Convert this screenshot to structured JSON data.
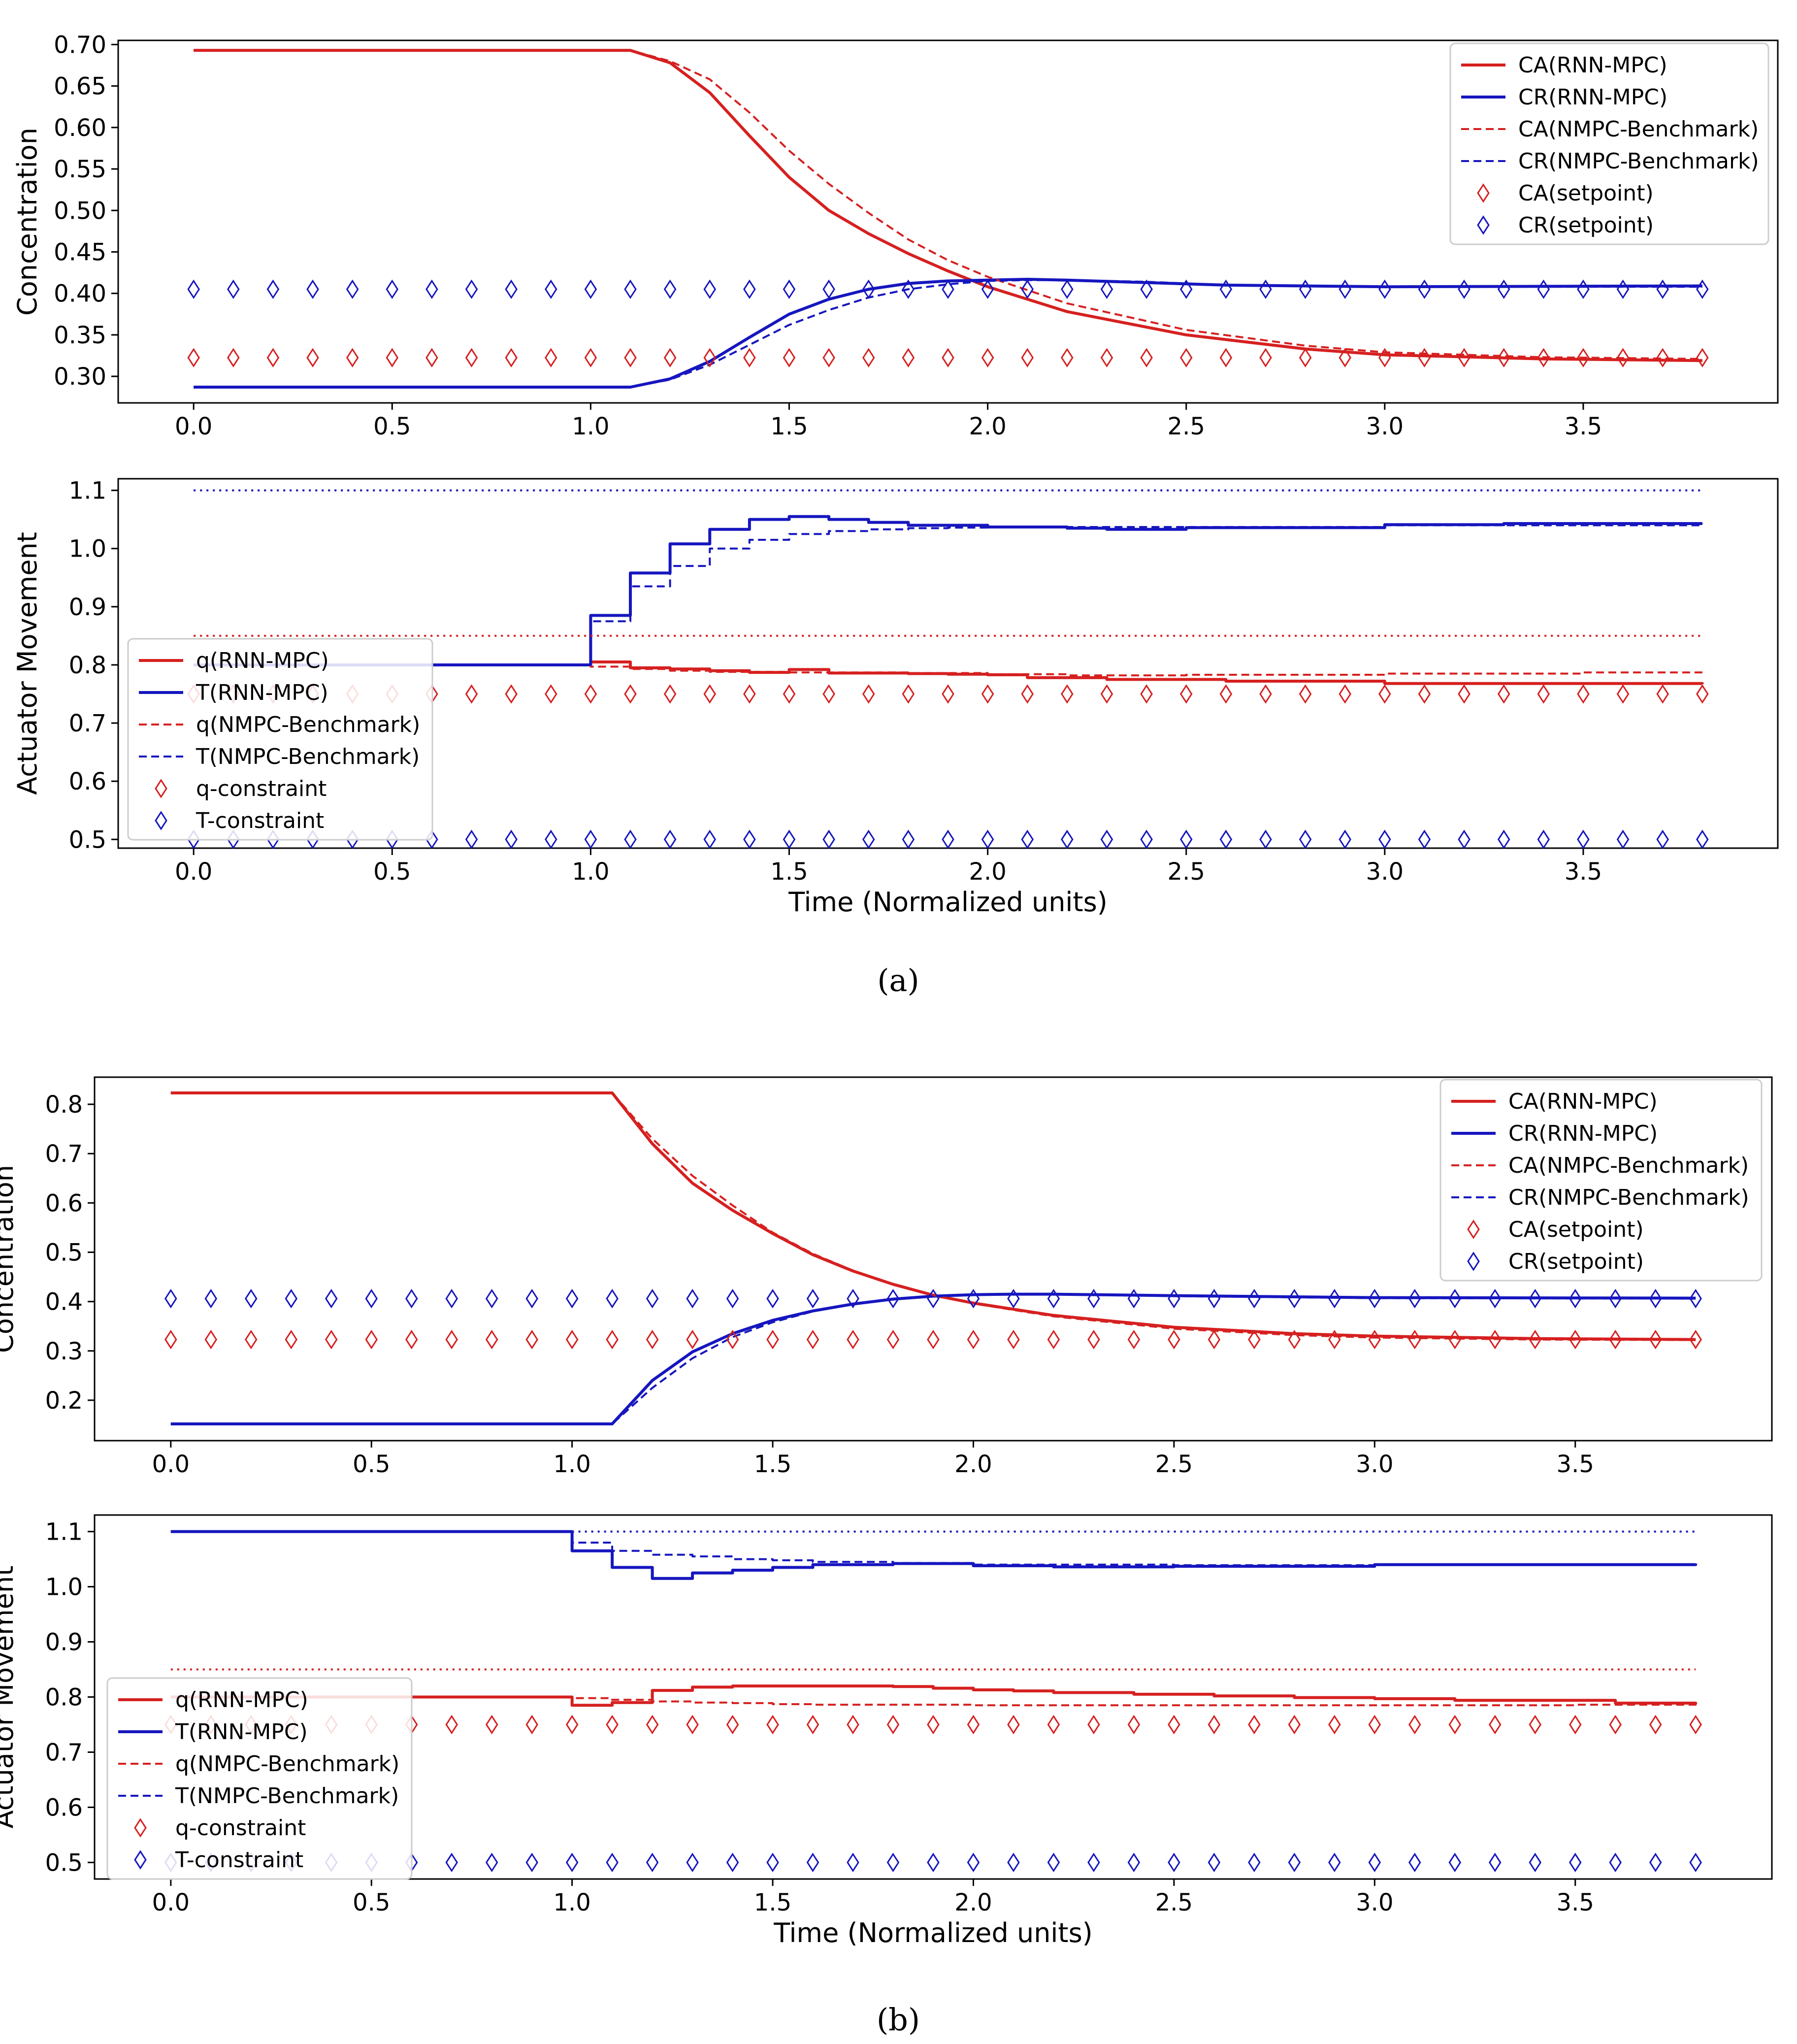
{
  "figure_captions": [
    "(a)",
    "(b)"
  ],
  "colors": {
    "red": "#d62020",
    "blue": "#1616bf"
  },
  "chart_data": [
    {
      "id": "a_conc",
      "type": "line",
      "title": "",
      "xlabel": "",
      "ylabel": "Concentration",
      "xlim": [
        -0.19,
        3.99
      ],
      "ylim": [
        0.268,
        0.705
      ],
      "xticks": [
        "0.0",
        "0.5",
        "1.0",
        "1.5",
        "2.0",
        "2.5",
        "3.0",
        "3.5"
      ],
      "yticks": [
        "0.30",
        "0.35",
        "0.40",
        "0.45",
        "0.50",
        "0.55",
        "0.60",
        "0.65",
        "0.70"
      ],
      "legend": {
        "placement": "top-right",
        "labels": [
          "CA(RNN-MPC)",
          "CR(RNN-MPC)",
          "CA(NMPC-Benchmark)",
          "CR(NMPC-Benchmark)",
          "CA(setpoint)",
          "CR(setpoint)"
        ]
      },
      "series": [
        {
          "name": "CA(RNN-MPC)",
          "color": "red",
          "style": "solid",
          "x": [
            0,
            1.1,
            1.2,
            1.3,
            1.4,
            1.5,
            1.6,
            1.7,
            1.8,
            1.9,
            2.0,
            2.2,
            2.5,
            2.8,
            3.0,
            3.4,
            3.8
          ],
          "y": [
            0.693,
            0.693,
            0.678,
            0.642,
            0.59,
            0.54,
            0.5,
            0.472,
            0.448,
            0.427,
            0.408,
            0.378,
            0.35,
            0.333,
            0.326,
            0.321,
            0.319
          ]
        },
        {
          "name": "CR(RNN-MPC)",
          "color": "blue",
          "style": "solid",
          "x": [
            0,
            1.1,
            1.2,
            1.3,
            1.4,
            1.5,
            1.6,
            1.7,
            1.8,
            1.9,
            2.0,
            2.1,
            2.2,
            2.4,
            2.6,
            3.0,
            3.8
          ],
          "y": [
            0.287,
            0.287,
            0.297,
            0.318,
            0.347,
            0.375,
            0.393,
            0.405,
            0.412,
            0.415,
            0.416,
            0.417,
            0.416,
            0.413,
            0.41,
            0.408,
            0.409
          ]
        },
        {
          "name": "CA(NMPC-Benchmark)",
          "color": "red",
          "style": "dashed",
          "x": [
            0,
            1.1,
            1.2,
            1.3,
            1.4,
            1.5,
            1.6,
            1.7,
            1.8,
            1.9,
            2.0,
            2.2,
            2.5,
            2.8,
            3.0,
            3.4,
            3.8
          ],
          "y": [
            0.693,
            0.693,
            0.68,
            0.658,
            0.618,
            0.572,
            0.532,
            0.497,
            0.465,
            0.44,
            0.42,
            0.388,
            0.356,
            0.337,
            0.329,
            0.323,
            0.321
          ]
        },
        {
          "name": "CR(NMPC-Benchmark)",
          "color": "blue",
          "style": "dashed",
          "x": [
            0,
            1.1,
            1.2,
            1.3,
            1.4,
            1.5,
            1.6,
            1.7,
            1.8,
            1.9,
            2.0,
            2.1,
            2.2,
            2.4,
            2.6,
            3.0,
            3.8
          ],
          "y": [
            0.287,
            0.287,
            0.296,
            0.314,
            0.338,
            0.362,
            0.38,
            0.395,
            0.405,
            0.411,
            0.415,
            0.416,
            0.416,
            0.414,
            0.41,
            0.408,
            0.408
          ]
        },
        {
          "name": "CA(setpoint)",
          "color": "red",
          "style": "marker",
          "constant": 0.3225,
          "x_start": 0,
          "x_end": 3.8,
          "x_step": 0.1
        },
        {
          "name": "CR(setpoint)",
          "color": "blue",
          "style": "marker",
          "constant": 0.405,
          "x_start": 0,
          "x_end": 3.8,
          "x_step": 0.1
        }
      ]
    },
    {
      "id": "a_act",
      "type": "line",
      "title": "",
      "xlabel": "Time (Normalized units)",
      "ylabel": "Actuator Movement",
      "xlim": [
        -0.19,
        3.99
      ],
      "ylim": [
        0.485,
        1.12
      ],
      "xticks": [
        "0.0",
        "0.5",
        "1.0",
        "1.5",
        "2.0",
        "2.5",
        "3.0",
        "3.5"
      ],
      "yticks": [
        "0.5",
        "0.6",
        "0.7",
        "0.8",
        "0.9",
        "1.0",
        "1.1"
      ],
      "legend": {
        "placement": "lower-left",
        "labels": [
          "q(RNN-MPC)",
          "T(RNN-MPC)",
          "q(NMPC-Benchmark)",
          "T(NMPC-Benchmark)",
          "q-constraint",
          "T-constraint"
        ]
      },
      "series": [
        {
          "name": "q(RNN-MPC)",
          "color": "red",
          "style": "step",
          "x": [
            0,
            1.0,
            1.1,
            1.2,
            1.3,
            1.4,
            1.5,
            1.6,
            1.8,
            1.9,
            2.0,
            2.1,
            2.3,
            2.6,
            3.0,
            3.8
          ],
          "y": [
            0.8,
            0.805,
            0.795,
            0.793,
            0.79,
            0.787,
            0.792,
            0.786,
            0.785,
            0.784,
            0.783,
            0.778,
            0.775,
            0.772,
            0.768,
            0.767
          ]
        },
        {
          "name": "T(RNN-MPC)",
          "color": "blue",
          "style": "step",
          "x": [
            0,
            1.0,
            1.1,
            1.2,
            1.3,
            1.4,
            1.5,
            1.6,
            1.7,
            1.8,
            2.0,
            2.2,
            2.3,
            2.5,
            3.0,
            3.3,
            3.8
          ],
          "y": [
            0.8,
            0.885,
            0.958,
            1.008,
            1.033,
            1.05,
            1.055,
            1.05,
            1.045,
            1.04,
            1.037,
            1.035,
            1.033,
            1.036,
            1.041,
            1.043,
            1.043
          ]
        },
        {
          "name": "q(NMPC-Benchmark)",
          "color": "red",
          "style": "step-dashed",
          "x": [
            0,
            1.0,
            1.1,
            1.2,
            1.3,
            1.5,
            1.6,
            1.8,
            2.0,
            2.2,
            2.5,
            3.0,
            3.5,
            3.8
          ],
          "y": [
            0.8,
            0.797,
            0.793,
            0.79,
            0.788,
            0.787,
            0.787,
            0.786,
            0.784,
            0.782,
            0.783,
            0.785,
            0.787,
            0.787
          ]
        },
        {
          "name": "T(NMPC-Benchmark)",
          "color": "blue",
          "style": "step-dashed",
          "x": [
            0,
            1.0,
            1.1,
            1.2,
            1.3,
            1.4,
            1.5,
            1.6,
            1.7,
            1.8,
            1.9,
            2.0,
            2.5,
            3.0,
            3.8
          ],
          "y": [
            0.8,
            0.875,
            0.935,
            0.97,
            1.0,
            1.015,
            1.025,
            1.03,
            1.033,
            1.035,
            1.036,
            1.037,
            1.037,
            1.04,
            1.043
          ]
        },
        {
          "name": "q-upper-bound",
          "color": "red",
          "style": "dotted",
          "constant": 0.85,
          "x_start": 0,
          "x_end": 3.8
        },
        {
          "name": "T-upper-bound",
          "color": "blue",
          "style": "dotted",
          "constant": 1.1,
          "x_start": 0,
          "x_end": 3.8
        },
        {
          "name": "q-constraint",
          "color": "red",
          "style": "marker",
          "constant": 0.75,
          "x_start": 0,
          "x_end": 3.8,
          "x_step": 0.1
        },
        {
          "name": "T-constraint",
          "color": "blue",
          "style": "marker",
          "constant": 0.5,
          "x_start": 0,
          "x_end": 3.8,
          "x_step": 0.1
        }
      ]
    },
    {
      "id": "b_conc",
      "type": "line",
      "title": "",
      "xlabel": "",
      "ylabel": "Concentration",
      "xlim": [
        -0.19,
        3.99
      ],
      "ylim": [
        0.118,
        0.855
      ],
      "xticks": [
        "0.0",
        "0.5",
        "1.0",
        "1.5",
        "2.0",
        "2.5",
        "3.0",
        "3.5"
      ],
      "yticks": [
        "0.2",
        "0.3",
        "0.4",
        "0.5",
        "0.6",
        "0.7",
        "0.8"
      ],
      "legend": {
        "placement": "top-right",
        "labels": [
          "CA(RNN-MPC)",
          "CR(RNN-MPC)",
          "CA(NMPC-Benchmark)",
          "CR(NMPC-Benchmark)",
          "CA(setpoint)",
          "CR(setpoint)"
        ]
      },
      "series": [
        {
          "name": "CA(RNN-MPC)",
          "color": "red",
          "style": "solid",
          "x": [
            0,
            1.1,
            1.2,
            1.3,
            1.4,
            1.5,
            1.6,
            1.7,
            1.8,
            1.9,
            2.0,
            2.2,
            2.5,
            2.8,
            3.0,
            3.4,
            3.8
          ],
          "y": [
            0.823,
            0.823,
            0.72,
            0.64,
            0.585,
            0.538,
            0.495,
            0.462,
            0.435,
            0.413,
            0.397,
            0.372,
            0.348,
            0.335,
            0.33,
            0.325,
            0.323
          ]
        },
        {
          "name": "CR(RNN-MPC)",
          "color": "blue",
          "style": "solid",
          "x": [
            0,
            1.1,
            1.2,
            1.3,
            1.4,
            1.5,
            1.6,
            1.7,
            1.8,
            1.9,
            2.0,
            2.1,
            2.2,
            2.5,
            3.0,
            3.8
          ],
          "y": [
            0.152,
            0.152,
            0.24,
            0.298,
            0.335,
            0.362,
            0.381,
            0.395,
            0.405,
            0.411,
            0.414,
            0.415,
            0.415,
            0.412,
            0.408,
            0.407
          ]
        },
        {
          "name": "CA(NMPC-Benchmark)",
          "color": "red",
          "style": "dashed",
          "x": [
            0,
            1.1,
            1.2,
            1.3,
            1.4,
            1.5,
            1.6,
            1.7,
            1.8,
            1.9,
            2.0,
            2.2,
            2.5,
            2.8,
            3.0,
            3.4,
            3.8
          ],
          "y": [
            0.823,
            0.823,
            0.73,
            0.655,
            0.595,
            0.54,
            0.497,
            0.463,
            0.435,
            0.413,
            0.396,
            0.37,
            0.345,
            0.332,
            0.327,
            0.323,
            0.322
          ]
        },
        {
          "name": "CR(NMPC-Benchmark)",
          "color": "blue",
          "style": "dashed",
          "x": [
            0,
            1.1,
            1.2,
            1.3,
            1.4,
            1.5,
            1.6,
            1.7,
            1.8,
            1.9,
            2.0,
            2.1,
            2.2,
            2.5,
            3.0,
            3.8
          ],
          "y": [
            0.152,
            0.152,
            0.225,
            0.285,
            0.328,
            0.358,
            0.38,
            0.395,
            0.405,
            0.411,
            0.414,
            0.415,
            0.415,
            0.411,
            0.407,
            0.406
          ]
        },
        {
          "name": "CA(setpoint)",
          "color": "red",
          "style": "marker",
          "constant": 0.323,
          "x_start": 0,
          "x_end": 3.8,
          "x_step": 0.1
        },
        {
          "name": "CR(setpoint)",
          "color": "blue",
          "style": "marker",
          "constant": 0.406,
          "x_start": 0,
          "x_end": 3.8,
          "x_step": 0.1
        }
      ]
    },
    {
      "id": "b_act",
      "type": "line",
      "title": "",
      "xlabel": "Time (Normalized units)",
      "ylabel": "Actuator Movement",
      "xlim": [
        -0.19,
        3.99
      ],
      "ylim": [
        0.47,
        1.13
      ],
      "xticks": [
        "0.0",
        "0.5",
        "1.0",
        "1.5",
        "2.0",
        "2.5",
        "3.0",
        "3.5"
      ],
      "yticks": [
        "0.5",
        "0.6",
        "0.7",
        "0.8",
        "0.9",
        "1.0",
        "1.1"
      ],
      "legend": {
        "placement": "lower-left",
        "labels": [
          "q(RNN-MPC)",
          "T(RNN-MPC)",
          "q(NMPC-Benchmark)",
          "T(NMPC-Benchmark)",
          "q-constraint",
          "T-constraint"
        ]
      },
      "series": [
        {
          "name": "q(RNN-MPC)",
          "color": "red",
          "style": "step",
          "x": [
            0,
            1.0,
            1.1,
            1.2,
            1.3,
            1.4,
            1.8,
            1.9,
            2.0,
            2.1,
            2.2,
            2.4,
            2.6,
            2.8,
            3.0,
            3.2,
            3.6,
            3.8
          ],
          "y": [
            0.8,
            0.785,
            0.79,
            0.812,
            0.818,
            0.82,
            0.819,
            0.816,
            0.813,
            0.811,
            0.808,
            0.805,
            0.802,
            0.799,
            0.797,
            0.794,
            0.789,
            0.787
          ]
        },
        {
          "name": "T(RNN-MPC)",
          "color": "blue",
          "style": "step",
          "x": [
            0,
            1.0,
            1.1,
            1.2,
            1.3,
            1.4,
            1.5,
            1.6,
            1.8,
            2.0,
            2.2,
            2.5,
            3.0,
            3.8
          ],
          "y": [
            1.1,
            1.065,
            1.035,
            1.015,
            1.025,
            1.03,
            1.035,
            1.04,
            1.042,
            1.038,
            1.036,
            1.037,
            1.04,
            1.042
          ]
        },
        {
          "name": "q(NMPC-Benchmark)",
          "color": "red",
          "style": "step-dashed",
          "x": [
            0,
            1.0,
            1.1,
            1.2,
            1.3,
            1.4,
            1.5,
            1.6,
            2.0,
            2.5,
            3.0,
            3.5,
            3.8
          ],
          "y": [
            0.8,
            0.798,
            0.795,
            0.792,
            0.79,
            0.789,
            0.787,
            0.786,
            0.785,
            0.785,
            0.785,
            0.786,
            0.787
          ]
        },
        {
          "name": "T(NMPC-Benchmark)",
          "color": "blue",
          "style": "step-dashed",
          "x": [
            0,
            1.0,
            1.1,
            1.2,
            1.3,
            1.4,
            1.5,
            1.6,
            1.8,
            2.0,
            2.5,
            3.0,
            3.8
          ],
          "y": [
            1.1,
            1.08,
            1.065,
            1.058,
            1.055,
            1.05,
            1.048,
            1.045,
            1.043,
            1.04,
            1.039,
            1.04,
            1.042
          ]
        },
        {
          "name": "q-upper-bound",
          "color": "red",
          "style": "dotted",
          "constant": 0.85,
          "x_start": 0,
          "x_end": 3.8
        },
        {
          "name": "T-upper-bound",
          "color": "blue",
          "style": "dotted",
          "constant": 1.1,
          "x_start": 1.0,
          "x_end": 3.8
        },
        {
          "name": "q-constraint",
          "color": "red",
          "style": "marker",
          "constant": 0.75,
          "x_start": 0,
          "x_end": 3.8,
          "x_step": 0.1
        },
        {
          "name": "T-constraint",
          "color": "blue",
          "style": "marker",
          "constant": 0.5,
          "x_start": 0,
          "x_end": 3.8,
          "x_step": 0.1
        }
      ]
    }
  ]
}
